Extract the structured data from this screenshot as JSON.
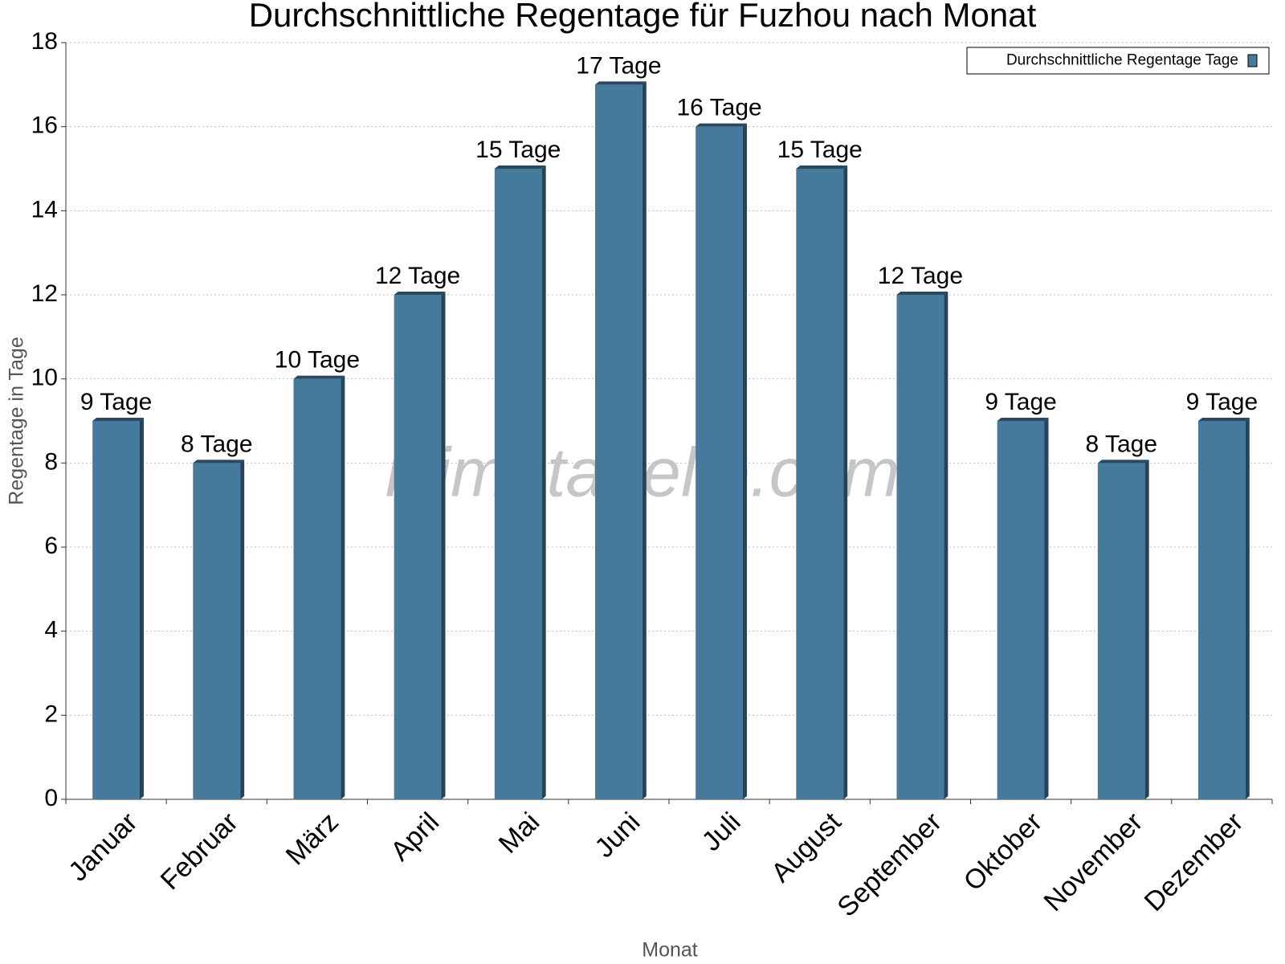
{
  "chart_data": {
    "type": "bar",
    "title": "Durchschnittliche Regentage für Fuzhou nach Monat",
    "x_label": "Monat",
    "y_label": "Regentage in Tage",
    "watermark": "klimatabelle.com",
    "categories": [
      "Januar",
      "Februar",
      "März",
      "April",
      "Mai",
      "Juni",
      "Juli",
      "August",
      "September",
      "Oktober",
      "November",
      "Dezember"
    ],
    "series": [
      {
        "name": "Durchschnittliche Regentage Tage",
        "color": "#467a9c",
        "values": [
          9,
          8,
          10,
          12,
          15,
          17,
          16,
          15,
          12,
          9,
          8,
          9
        ],
        "value_labels": [
          "9 Tage",
          "8 Tage",
          "10 Tage",
          "12 Tage",
          "15 Tage",
          "17 Tage",
          "16 Tage",
          "15 Tage",
          "12 Tage",
          "9 Tage",
          "8 Tage",
          "9 Tage"
        ]
      }
    ],
    "ylim": [
      0,
      18
    ],
    "yticks": [
      0,
      2,
      4,
      6,
      8,
      10,
      12,
      14,
      16,
      18
    ],
    "grid": true,
    "legend": "upper right"
  }
}
